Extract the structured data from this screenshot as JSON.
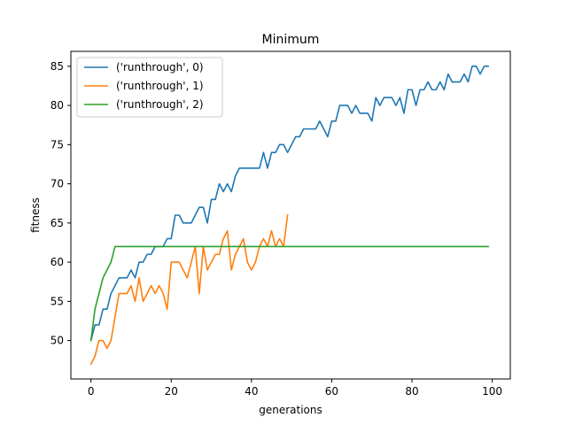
{
  "chart_data": {
    "type": "line",
    "title": "Minimum",
    "xlabel": "generations",
    "ylabel": "fitness",
    "xlim": [
      -5,
      104.5
    ],
    "ylim": [
      45.1,
      86.9
    ],
    "xticks": [
      0,
      20,
      40,
      60,
      80,
      100
    ],
    "yticks": [
      50,
      55,
      60,
      65,
      70,
      75,
      80,
      85
    ],
    "grid": false,
    "legend_position": "top-left",
    "series": [
      {
        "name": "('runthrough', 0)",
        "color": "#1f77b4",
        "x": [
          0,
          1,
          2,
          3,
          4,
          5,
          6,
          7,
          8,
          9,
          10,
          11,
          12,
          13,
          14,
          15,
          16,
          17,
          18,
          19,
          20,
          21,
          22,
          23,
          24,
          25,
          26,
          27,
          28,
          29,
          30,
          31,
          32,
          33,
          34,
          35,
          36,
          37,
          38,
          39,
          40,
          41,
          42,
          43,
          44,
          45,
          46,
          47,
          48,
          49,
          50,
          51,
          52,
          53,
          54,
          55,
          56,
          57,
          58,
          59,
          60,
          61,
          62,
          63,
          64,
          65,
          66,
          67,
          68,
          69,
          70,
          71,
          72,
          73,
          74,
          75,
          76,
          77,
          78,
          79,
          80,
          81,
          82,
          83,
          84,
          85,
          86,
          87,
          88,
          89,
          90,
          91,
          92,
          93,
          94,
          95,
          96,
          97,
          98,
          99
        ],
        "y": [
          50,
          52,
          52,
          54,
          54,
          56,
          57,
          58,
          58,
          58,
          59,
          58,
          60,
          60,
          61,
          61,
          62,
          62,
          62,
          63,
          63,
          66,
          66,
          65,
          65,
          65,
          66,
          67,
          67,
          65,
          68,
          68,
          70,
          69,
          70,
          69,
          71,
          72,
          72,
          72,
          72,
          72,
          72,
          74,
          72,
          74,
          74,
          75,
          75,
          74,
          75,
          76,
          76,
          77,
          77,
          77,
          77,
          78,
          77,
          76,
          78,
          78,
          80,
          80,
          80,
          79,
          80,
          79,
          79,
          79,
          78,
          81,
          80,
          81,
          81,
          81,
          80,
          81,
          79,
          82,
          82,
          80,
          82,
          82,
          83,
          82,
          82,
          83,
          82,
          84,
          83,
          83,
          83,
          84,
          83,
          85,
          85,
          84,
          85,
          85
        ]
      },
      {
        "name": "('runthrough', 1)",
        "color": "#ff7f0e",
        "x": [
          0,
          1,
          2,
          3,
          4,
          5,
          6,
          7,
          8,
          9,
          10,
          11,
          12,
          13,
          14,
          15,
          16,
          17,
          18,
          19,
          20,
          21,
          22,
          23,
          24,
          25,
          26,
          27,
          28,
          29,
          30,
          31,
          32,
          33,
          34,
          35,
          36,
          37,
          38,
          39,
          40,
          41,
          42,
          43,
          44,
          45,
          46,
          47,
          48,
          49
        ],
        "y": [
          47,
          48,
          50,
          50,
          49,
          50,
          53,
          56,
          56,
          56,
          57,
          55,
          58,
          55,
          56,
          57,
          56,
          57,
          56,
          54,
          60,
          60,
          60,
          59,
          58,
          60,
          62,
          56,
          62,
          59,
          60,
          61,
          61,
          63,
          64,
          59,
          61,
          62,
          63,
          60,
          59,
          60,
          62,
          63,
          62,
          64,
          62,
          63,
          62,
          66
        ]
      },
      {
        "name": "('runthrough', 2)",
        "color": "#2ca02c",
        "x": [
          0,
          1,
          2,
          3,
          4,
          5,
          6,
          7,
          8,
          9,
          10,
          11,
          12,
          13,
          14,
          15,
          16,
          17,
          18,
          19,
          20,
          21,
          22,
          23,
          24,
          25,
          26,
          27,
          28,
          29,
          30,
          31,
          32,
          33,
          34,
          35,
          36,
          37,
          38,
          39,
          40,
          41,
          42,
          43,
          44,
          45,
          46,
          47,
          48,
          49,
          50,
          51,
          52,
          53,
          54,
          55,
          56,
          57,
          58,
          59,
          60,
          61,
          62,
          63,
          64,
          65,
          66,
          67,
          68,
          69,
          70,
          71,
          72,
          73,
          74,
          75,
          76,
          77,
          78,
          79,
          80,
          81,
          82,
          83,
          84,
          85,
          86,
          87,
          88,
          89,
          90,
          91,
          92,
          93,
          94,
          95,
          96,
          97,
          98,
          99
        ],
        "y": [
          50,
          54,
          56,
          58,
          59,
          60,
          62,
          62,
          62,
          62,
          62,
          62,
          62,
          62,
          62,
          62,
          62,
          62,
          62,
          62,
          62,
          62,
          62,
          62,
          62,
          62,
          62,
          62,
          62,
          62,
          62,
          62,
          62,
          62,
          62,
          62,
          62,
          62,
          62,
          62,
          62,
          62,
          62,
          62,
          62,
          62,
          62,
          62,
          62,
          62,
          62,
          62,
          62,
          62,
          62,
          62,
          62,
          62,
          62,
          62,
          62,
          62,
          62,
          62,
          62,
          62,
          62,
          62,
          62,
          62,
          62,
          62,
          62,
          62,
          62,
          62,
          62,
          62,
          62,
          62,
          62,
          62,
          62,
          62,
          62,
          62,
          62,
          62,
          62,
          62,
          62,
          62,
          62,
          62,
          62,
          62,
          62,
          62,
          62,
          62
        ]
      }
    ]
  }
}
